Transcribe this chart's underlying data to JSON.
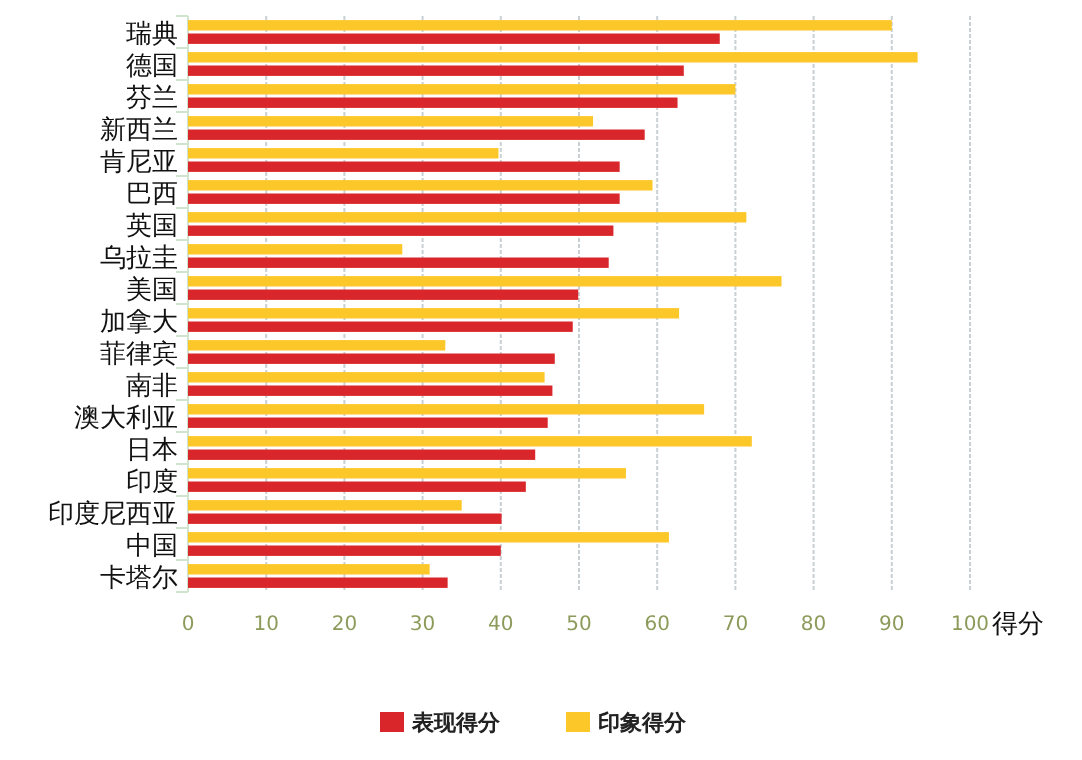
{
  "chart_data": {
    "type": "bar",
    "orientation": "horizontal",
    "xlabel": "得分",
    "categories": [
      "瑞典",
      "德国",
      "芬兰",
      "新西兰",
      "肯尼亚",
      "巴西",
      "英国",
      "乌拉圭",
      "美国",
      "加拿大",
      "菲律宾",
      "南非",
      "澳大利亚",
      "日本",
      "印度",
      "印度尼西亚",
      "中国",
      "卡塔尔"
    ],
    "series": [
      {
        "name": "表现得分",
        "color": "#d9262a",
        "values": [
          68,
          63.4,
          62.6,
          58.4,
          55.2,
          55.2,
          54.4,
          53.8,
          49.9,
          49.2,
          46.9,
          46.6,
          46,
          44.4,
          43.2,
          40.1,
          40,
          33.2
        ]
      },
      {
        "name": "印象得分",
        "color": "#fcc729",
        "values": [
          90,
          93.3,
          70,
          51.8,
          39.7,
          59.4,
          71.4,
          27.4,
          75.9,
          62.8,
          32.9,
          45.6,
          66,
          72.1,
          56,
          35,
          61.5,
          30.9
        ]
      }
    ],
    "xlim": [
      0,
      100
    ],
    "xticks": [
      0,
      10,
      20,
      30,
      40,
      50,
      60,
      70,
      80,
      90,
      100
    ],
    "grid": "x",
    "legend": "bottom"
  }
}
